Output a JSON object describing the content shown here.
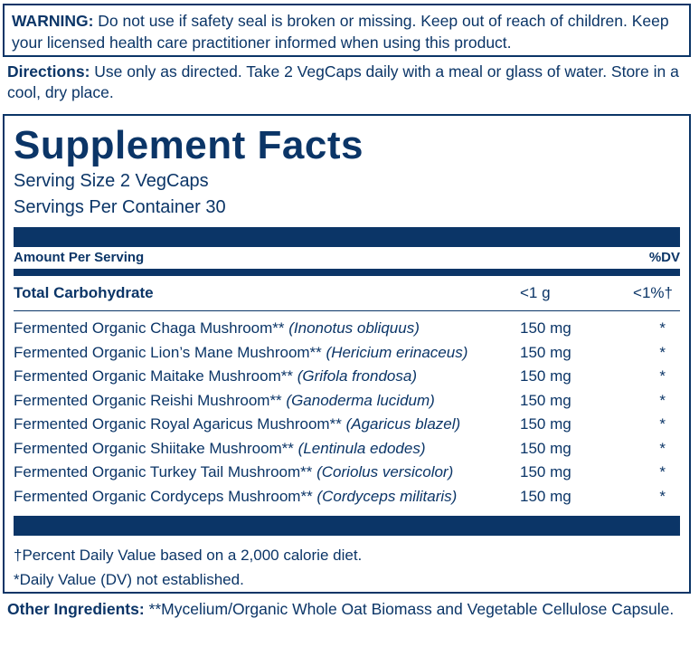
{
  "warning": {
    "label": "WARNING:",
    "text": "Do not use if safety seal is broken or missing. Keep out of reach of children. Keep your licensed health care practitioner informed when using this product."
  },
  "directions": {
    "label": "Directions:",
    "text": "Use only as directed. Take 2 VegCaps daily with a meal or glass of water. Store in a cool, dry place."
  },
  "facts": {
    "title": "Supplement Facts",
    "serving_size": "Serving Size 2 VegCaps",
    "servings_per_container": "Servings Per Container 30",
    "header": {
      "amount": "Amount Per Serving",
      "dv": "%DV"
    },
    "carbohydrate": {
      "name": "Total Carbohydrate",
      "amount": "<1 g",
      "dv": "<1%†"
    },
    "ingredients": [
      {
        "name": "Fermented Organic Chaga Mushroom**",
        "latin": "(Inonotus obliquus)",
        "amount": "150 mg",
        "dv": "*"
      },
      {
        "name": "Fermented Organic Lion’s Mane Mushroom**",
        "latin": "(Hericium erinaceus)",
        "amount": "150 mg",
        "dv": "*"
      },
      {
        "name": "Fermented Organic Maitake Mushroom**",
        "latin": "(Grifola frondosa)",
        "amount": "150 mg",
        "dv": "*"
      },
      {
        "name": "Fermented Organic Reishi Mushroom**",
        "latin": "(Ganoderma lucidum)",
        "amount": "150 mg",
        "dv": "*"
      },
      {
        "name": "Fermented Organic Royal Agaricus Mushroom**",
        "latin": "(Agaricus blazel)",
        "amount": "150 mg",
        "dv": "*"
      },
      {
        "name": "Fermented Organic Shiitake Mushroom**",
        "latin": "(Lentinula edodes)",
        "amount": "150 mg",
        "dv": "*"
      },
      {
        "name": "Fermented Organic Turkey Tail Mushroom**",
        "latin": "(Coriolus versicolor)",
        "amount": "150 mg",
        "dv": "*"
      },
      {
        "name": "Fermented Organic Cordyceps Mushroom**",
        "latin": "(Cordyceps militaris)",
        "amount": "150 mg",
        "dv": "*"
      }
    ],
    "footnotes": [
      "†Percent Daily Value based on a 2,000 calorie diet.",
      "*Daily Value (DV) not established."
    ]
  },
  "other_ingredients": {
    "label": "Other Ingredients:",
    "text": "**Mycelium/Organic Whole Oat Biomass and Vegetable Cellulose Capsule."
  }
}
